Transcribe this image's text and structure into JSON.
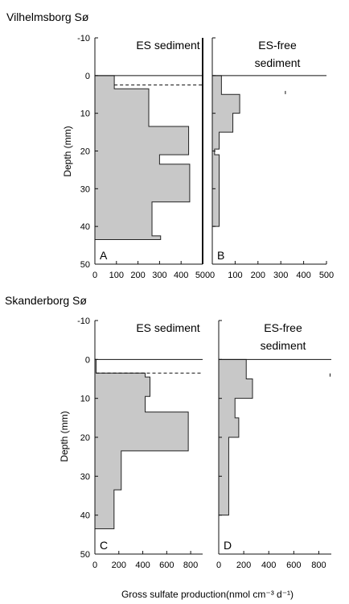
{
  "figure": {
    "x_axis_title": "Gross sulfate production(nmol cm⁻³ d⁻¹)",
    "y_axis_title": "Depth (mm)"
  },
  "chart_data": [
    {
      "type": "step-profile",
      "site": "Vilhelmsborg Sø",
      "panel_label": "A",
      "title_lines": [
        "ES sediment"
      ],
      "xlabel": "Gross sulfate production(nmol cm⁻³ d⁻¹)",
      "ylabel": "Depth (mm)",
      "xlim": [
        0,
        500
      ],
      "ylim": [
        50,
        -10
      ],
      "xticks": [
        0,
        100,
        200,
        300,
        400,
        500
      ],
      "yticks": [
        -10,
        0,
        10,
        20,
        30,
        40,
        50
      ],
      "dashed_line_depth": 2.5,
      "profile": [
        {
          "depth_from": 0,
          "depth_to": 3.5,
          "value": 90
        },
        {
          "depth_from": 3.5,
          "depth_to": 13.5,
          "value": 250
        },
        {
          "depth_from": 13.5,
          "depth_to": 21,
          "value": 435
        },
        {
          "depth_from": 21,
          "depth_to": 23.5,
          "value": 300
        },
        {
          "depth_from": 23.5,
          "depth_to": 33.5,
          "value": 440
        },
        {
          "depth_from": 33.5,
          "depth_to": 42.5,
          "value": 265
        },
        {
          "depth_from": 42.5,
          "depth_to": 43.5,
          "value": 305
        }
      ]
    },
    {
      "type": "step-profile",
      "site": "Vilhelmsborg Sø",
      "panel_label": "B",
      "title_lines": [
        "ES-free",
        "sediment"
      ],
      "xlabel": "Gross sulfate production(nmol cm⁻³ d⁻¹)",
      "ylabel": "Depth (mm)",
      "xlim": [
        0,
        500
      ],
      "ylim": [
        50,
        -10
      ],
      "xticks": [
        0,
        100,
        200,
        300,
        400,
        500
      ],
      "yticks": [
        -10,
        0,
        10,
        20,
        30,
        40,
        50
      ],
      "marks": [
        {
          "x": 320,
          "depth": 4.5
        }
      ],
      "profile": [
        {
          "depth_from": 0,
          "depth_to": 5,
          "value": 40
        },
        {
          "depth_from": 5,
          "depth_to": 10,
          "value": 120
        },
        {
          "depth_from": 10,
          "depth_to": 15,
          "value": 90
        },
        {
          "depth_from": 15,
          "depth_to": 19.5,
          "value": 30
        },
        {
          "depth_from": 19.5,
          "depth_to": 21,
          "value": 10
        },
        {
          "depth_from": 21,
          "depth_to": 40,
          "value": 30
        }
      ]
    },
    {
      "type": "step-profile",
      "site": "Skanderborg Sø",
      "panel_label": "C",
      "title_lines": [
        "ES sediment"
      ],
      "xlabel": "Gross sulfate production(nmol cm⁻³ d⁻¹)",
      "ylabel": "Depth (mm)",
      "xlim": [
        0,
        900
      ],
      "ylim": [
        50,
        -10
      ],
      "xticks": [
        0,
        200,
        400,
        600,
        800
      ],
      "yticks": [
        -10,
        0,
        10,
        20,
        30,
        40,
        50
      ],
      "dashed_line_depth": 3.5,
      "profile": [
        {
          "depth_from": 0,
          "depth_to": 3.5,
          "value": 10
        },
        {
          "depth_from": 3.5,
          "depth_to": 4.5,
          "value": 420
        },
        {
          "depth_from": 4.5,
          "depth_to": 9.5,
          "value": 460
        },
        {
          "depth_from": 9.5,
          "depth_to": 13.5,
          "value": 420
        },
        {
          "depth_from": 13.5,
          "depth_to": 23.5,
          "value": 780
        },
        {
          "depth_from": 23.5,
          "depth_to": 33.5,
          "value": 220
        },
        {
          "depth_from": 33.5,
          "depth_to": 43.5,
          "value": 160
        }
      ]
    },
    {
      "type": "step-profile",
      "site": "Skanderborg Sø",
      "panel_label": "D",
      "title_lines": [
        "ES-free",
        "sediment"
      ],
      "xlabel": "Gross sulfate production(nmol cm⁻³ d⁻¹)",
      "ylabel": "Depth (mm)",
      "xlim": [
        0,
        900
      ],
      "ylim": [
        50,
        -10
      ],
      "xticks": [
        0,
        200,
        400,
        600,
        800
      ],
      "yticks": [
        -10,
        0,
        10,
        20,
        30,
        40,
        50
      ],
      "marks": [
        {
          "x": 890,
          "depth": 4
        }
      ],
      "profile": [
        {
          "depth_from": 0,
          "depth_to": 5,
          "value": 220
        },
        {
          "depth_from": 5,
          "depth_to": 10,
          "value": 270
        },
        {
          "depth_from": 10,
          "depth_to": 15,
          "value": 130
        },
        {
          "depth_from": 15,
          "depth_to": 20,
          "value": 160
        },
        {
          "depth_from": 20,
          "depth_to": 40,
          "value": 80
        }
      ]
    }
  ]
}
